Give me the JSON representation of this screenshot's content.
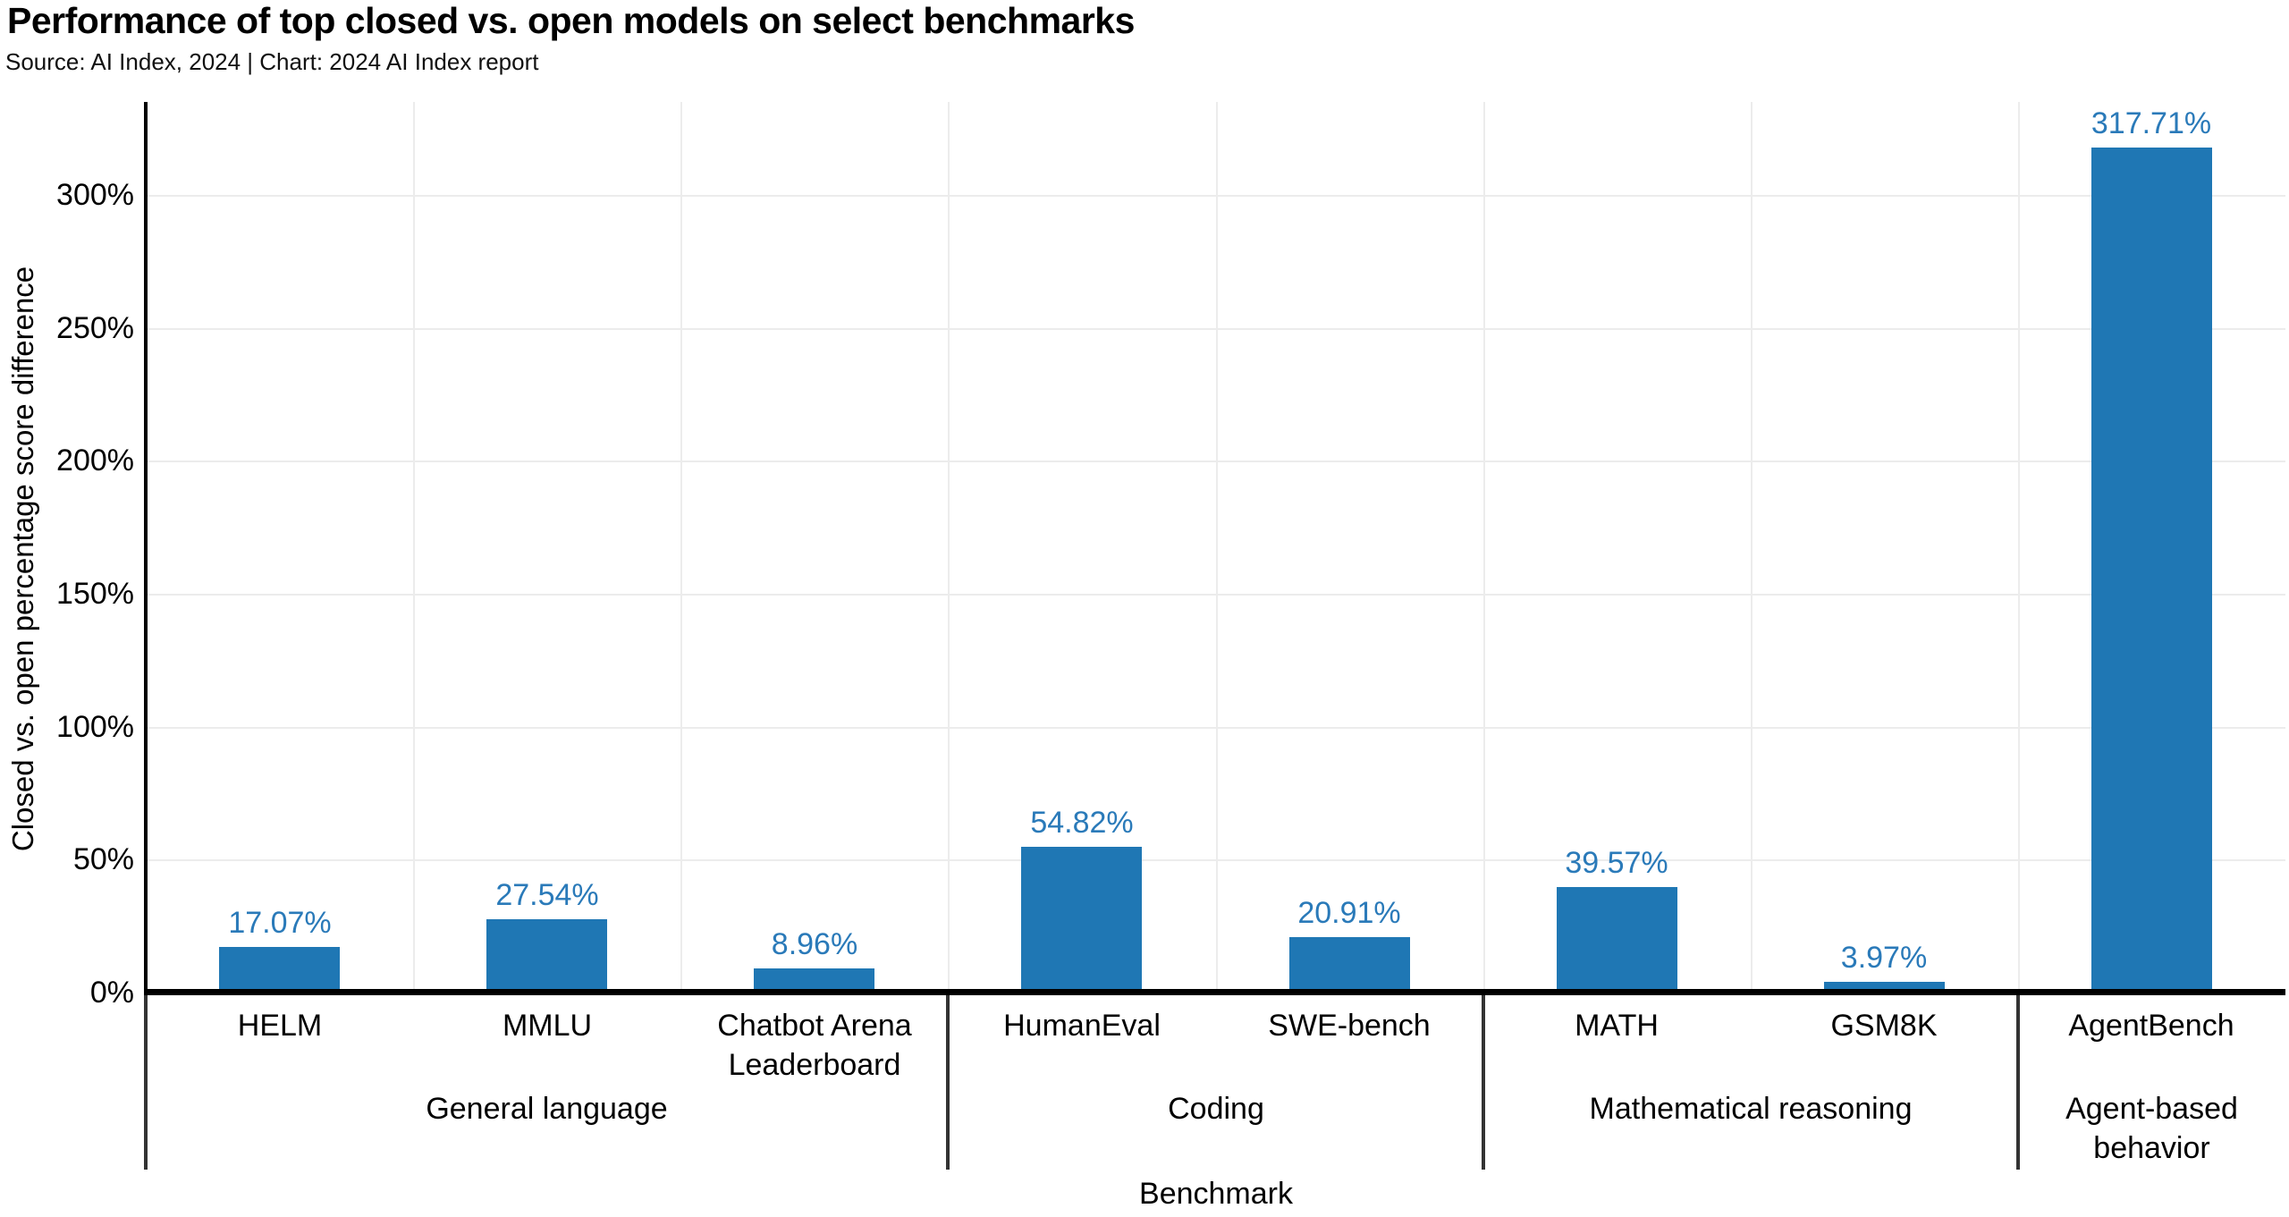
{
  "header": {
    "title": "Performance of top closed vs. open models on select benchmarks",
    "subtitle": "Source: AI Index, 2024 | Chart: 2024 AI Index report"
  },
  "colors": {
    "bar": "#1f77b4",
    "value_label": "#2a7ab9",
    "grid": "#ececec",
    "axis": "#000000",
    "divider": "#333333",
    "background": "#ffffff"
  },
  "chart_data": {
    "type": "bar",
    "title": "Performance of top closed vs. open models on select benchmarks",
    "subtitle": "Source: AI Index, 2024 | Chart: 2024 AI Index report",
    "xlabel": "Benchmark",
    "ylabel": "Closed vs. open percentage score difference",
    "categories": [
      "HELM",
      "MMLU",
      "Chatbot Arena Leaderboard",
      "HumanEval",
      "SWE-bench",
      "MATH",
      "GSM8K",
      "AgentBench"
    ],
    "values": [
      17.07,
      27.54,
      8.96,
      54.82,
      20.91,
      39.57,
      3.97,
      317.71
    ],
    "value_labels": [
      "17.07%",
      "27.54%",
      "8.96%",
      "54.82%",
      "20.91%",
      "39.57%",
      "3.97%",
      "317.71%"
    ],
    "groups": [
      {
        "label": "General language",
        "from": 0,
        "to": 2
      },
      {
        "label": "Coding",
        "from": 3,
        "to": 4
      },
      {
        "label": "Mathematical reasoning",
        "from": 5,
        "to": 6
      },
      {
        "label": "Agent-based behavior",
        "from": 7,
        "to": 7
      }
    ],
    "y_ticks": [
      {
        "value": 0,
        "label": "0%"
      },
      {
        "value": 50,
        "label": "50%"
      },
      {
        "value": 100,
        "label": "100%"
      },
      {
        "value": 150,
        "label": "150%"
      },
      {
        "value": 200,
        "label": "200%"
      },
      {
        "value": 250,
        "label": "250%"
      },
      {
        "value": 300,
        "label": "300%"
      }
    ],
    "ylim": [
      0,
      335
    ],
    "grid": true,
    "legend": false
  }
}
